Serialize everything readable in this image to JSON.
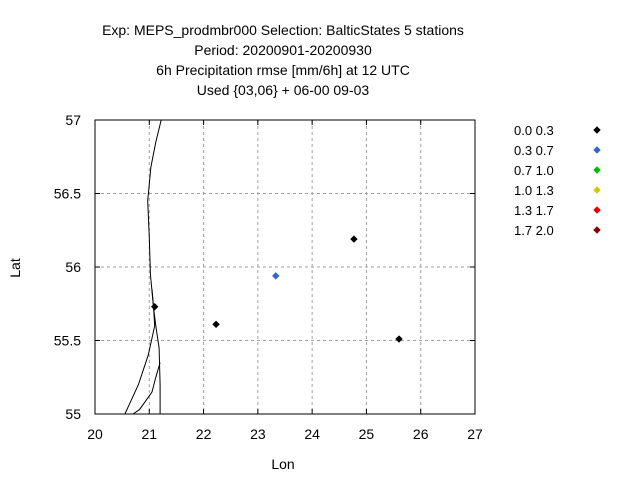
{
  "chart_data": {
    "type": "scatter",
    "title_lines": [
      "Exp: MEPS_prodmbr000   Selection: BalticStates      5 stations",
      "Period: 20200901-20200930",
      "6h Precipitation rmse [mm/6h] at  12 UTC",
      "Used {03,06} + 06-00 09-03"
    ],
    "xlabel": "Lon",
    "ylabel": "Lat",
    "xlim": [
      20,
      27
    ],
    "ylim": [
      55,
      57
    ],
    "xticks": [
      "20",
      "21",
      "22",
      "23",
      "24",
      "25",
      "26",
      "27"
    ],
    "yticks": [
      "55",
      "55.5",
      "56",
      "56.5",
      "57"
    ],
    "grid": true,
    "legend_position": "right",
    "legend": [
      {
        "label": "0.0 0.3",
        "color": "#000000"
      },
      {
        "label": "0.3 0.7",
        "color": "#3366cc"
      },
      {
        "label": "0.7 1.0",
        "color": "#00bb00"
      },
      {
        "label": "1.0 1.3",
        "color": "#cccc00"
      },
      {
        "label": "1.3 1.7",
        "color": "#ee0000"
      },
      {
        "label": "1.7 2.0",
        "color": "#880000"
      }
    ],
    "points": [
      {
        "lon": 21.1,
        "lat": 55.73,
        "class": 0
      },
      {
        "lon": 22.23,
        "lat": 55.61,
        "class": 0
      },
      {
        "lon": 23.33,
        "lat": 55.94,
        "class": 1
      },
      {
        "lon": 24.77,
        "lat": 56.19,
        "class": 0
      },
      {
        "lon": 25.6,
        "lat": 55.51,
        "class": 0
      }
    ],
    "coastlines": [
      [
        [
          21.22,
          57.0
        ],
        [
          21.12,
          56.85
        ],
        [
          21.03,
          56.68
        ],
        [
          20.97,
          56.45
        ],
        [
          21.0,
          56.2
        ],
        [
          21.02,
          55.95
        ],
        [
          21.08,
          55.72
        ],
        [
          21.12,
          55.6
        ],
        [
          21.18,
          55.45
        ],
        [
          21.2,
          55.2
        ],
        [
          21.2,
          55.0
        ]
      ],
      [
        [
          21.05,
          55.85
        ],
        [
          21.08,
          55.72
        ],
        [
          21.1,
          55.6
        ],
        [
          20.98,
          55.4
        ],
        [
          20.8,
          55.2
        ],
        [
          20.55,
          55.0
        ]
      ],
      [
        [
          21.2,
          55.35
        ],
        [
          21.12,
          55.25
        ],
        [
          21.05,
          55.15
        ],
        [
          20.82,
          55.03
        ],
        [
          20.7,
          55.0
        ]
      ]
    ]
  }
}
